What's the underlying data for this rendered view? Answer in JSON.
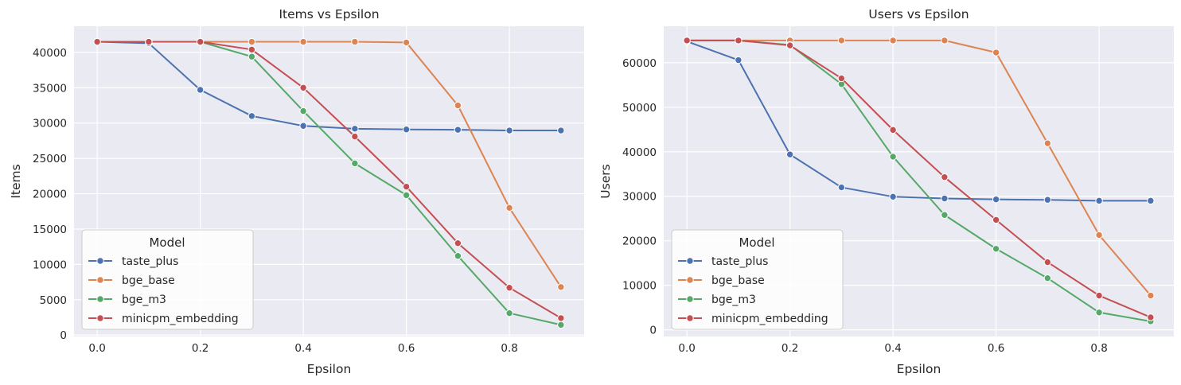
{
  "chart_data": [
    {
      "type": "line",
      "title": "Items vs Epsilon",
      "xlabel": "Epsilon",
      "ylabel": "Items",
      "x": [
        0.0,
        0.1,
        0.2,
        0.3,
        0.4,
        0.5,
        0.6,
        0.7,
        0.8,
        0.9
      ],
      "xlim": [
        -0.045,
        0.945
      ],
      "ylim": [
        -200,
        43700
      ],
      "xticks": [
        0.0,
        0.2,
        0.4,
        0.6,
        0.8
      ],
      "xtick_labels": [
        "0.0",
        "0.2",
        "0.4",
        "0.6",
        "0.8"
      ],
      "yticks": [
        0,
        5000,
        10000,
        15000,
        20000,
        25000,
        30000,
        35000,
        40000
      ],
      "ytick_labels": [
        "0",
        "5000",
        "10000",
        "15000",
        "20000",
        "25000",
        "30000",
        "35000",
        "40000"
      ],
      "grid": true,
      "legend_title": "Model",
      "legend_position": "lower-left",
      "series": [
        {
          "name": "taste_plus",
          "color": "#4c72b0",
          "values": [
            41500,
            41300,
            34700,
            31000,
            29600,
            29200,
            29100,
            29050,
            28950,
            28950
          ]
        },
        {
          "name": "bge_base",
          "color": "#dd8452",
          "values": [
            41500,
            41500,
            41500,
            41500,
            41500,
            41500,
            41400,
            32500,
            18000,
            6800
          ]
        },
        {
          "name": "bge_m3",
          "color": "#55a868",
          "values": [
            41500,
            41500,
            41500,
            39400,
            31700,
            24300,
            19800,
            11200,
            3100,
            1450
          ]
        },
        {
          "name": "minicpm_embedding",
          "color": "#c44e52",
          "values": [
            41500,
            41500,
            41500,
            40400,
            35000,
            28100,
            21000,
            13000,
            6700,
            2400
          ]
        }
      ]
    },
    {
      "type": "line",
      "title": "Users vs Epsilon",
      "xlabel": "Epsilon",
      "ylabel": "Users",
      "x": [
        0.0,
        0.1,
        0.2,
        0.3,
        0.4,
        0.5,
        0.6,
        0.7,
        0.8,
        0.9
      ],
      "xlim": [
        -0.045,
        0.945
      ],
      "ylim": [
        -1500,
        68200
      ],
      "xticks": [
        0.0,
        0.2,
        0.4,
        0.6,
        0.8
      ],
      "xtick_labels": [
        "0.0",
        "0.2",
        "0.4",
        "0.6",
        "0.8"
      ],
      "yticks": [
        0,
        10000,
        20000,
        30000,
        40000,
        50000,
        60000
      ],
      "ytick_labels": [
        "0",
        "10000",
        "20000",
        "30000",
        "40000",
        "50000",
        "60000"
      ],
      "grid": true,
      "legend_title": "Model",
      "legend_position": "lower-left",
      "series": [
        {
          "name": "taste_plus",
          "color": "#4c72b0",
          "values": [
            64800,
            60600,
            39400,
            32000,
            29900,
            29500,
            29300,
            29200,
            29000,
            29000
          ]
        },
        {
          "name": "bge_base",
          "color": "#dd8452",
          "values": [
            65000,
            65000,
            65000,
            65000,
            65000,
            65000,
            62300,
            41900,
            21300,
            7700
          ]
        },
        {
          "name": "bge_m3",
          "color": "#55a868",
          "values": [
            65000,
            65000,
            64000,
            55200,
            38900,
            25800,
            18200,
            11600,
            3900,
            1900
          ]
        },
        {
          "name": "minicpm_embedding",
          "color": "#c44e52",
          "values": [
            65000,
            65000,
            63900,
            56500,
            44900,
            34300,
            24700,
            15200,
            7700,
            2800
          ]
        }
      ]
    }
  ]
}
